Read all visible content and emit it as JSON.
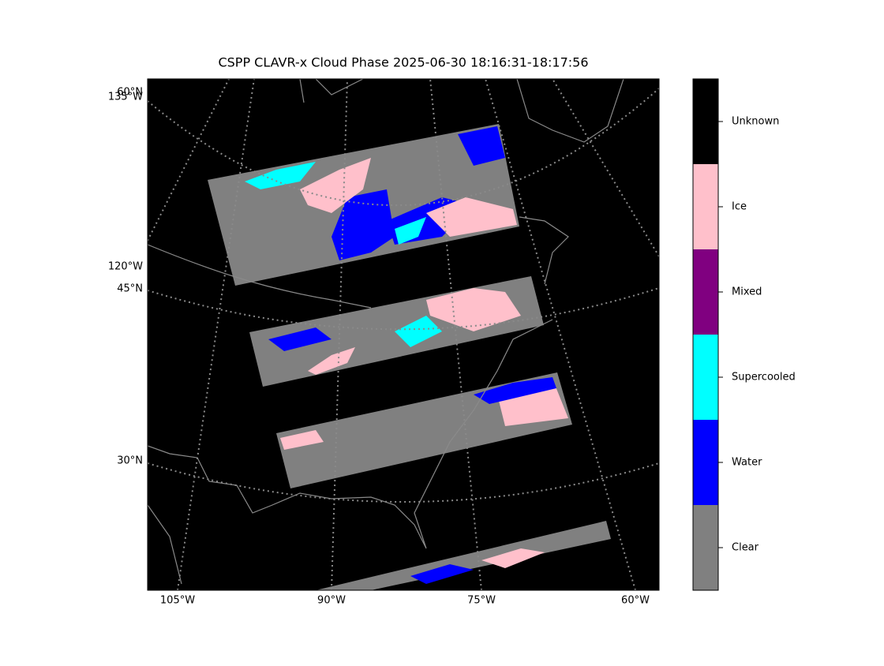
{
  "title": "CSPP CLAVR-x Cloud Phase 2025-06-30 18:16:31-18:17:56",
  "lon_labels": [
    "105°W",
    "90°W",
    "75°W",
    "60°W"
  ],
  "lat_labels": [
    "60°N",
    "45°N",
    "30°N"
  ],
  "left_lon_labels": [
    "135°W",
    "120°W"
  ],
  "legend": [
    {
      "label": "Clear",
      "color": "#808080"
    },
    {
      "label": "Water",
      "color": "#0000ff"
    },
    {
      "label": "Supercooled",
      "color": "#00ffff"
    },
    {
      "label": "Mixed",
      "color": "#800080"
    },
    {
      "label": "Ice",
      "color": "#ffc0cb"
    },
    {
      "label": "Unknown",
      "color": "#000000"
    }
  ]
}
